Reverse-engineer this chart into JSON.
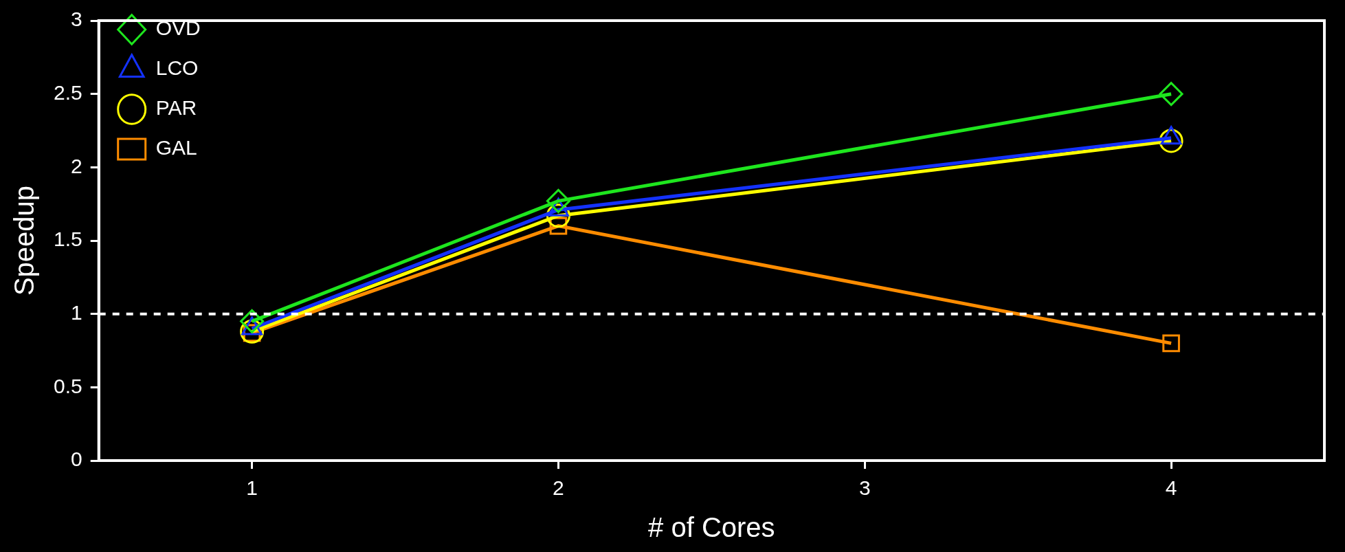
{
  "chart_data": {
    "type": "line",
    "xlabel": "# of Cores",
    "ylabel": "Speedup",
    "x": [
      1,
      2,
      4
    ],
    "xlim": [
      0.5,
      4.5
    ],
    "xticks": [
      1,
      2,
      3,
      4
    ],
    "ylim": [
      0,
      3
    ],
    "yticks": [
      0,
      0.5,
      1,
      1.5,
      2,
      2.5,
      3
    ],
    "grid": false,
    "legend": "top left",
    "ref_lines": [
      {
        "axis": "y",
        "value": 1,
        "color": "#ffffff",
        "line_style": "dashed"
      }
    ],
    "series": [
      {
        "name": "OVD",
        "color": "#1ee61e",
        "marker": "diamond",
        "values": [
          0.95,
          1.77,
          2.5
        ]
      },
      {
        "name": "LCO",
        "color": "#1432ff",
        "marker": "triangle",
        "values": [
          0.9,
          1.71,
          2.2
        ]
      },
      {
        "name": "PAR",
        "color": "#ffff00",
        "marker": "circle",
        "values": [
          0.88,
          1.67,
          2.18
        ]
      },
      {
        "name": "GAL",
        "color": "#ff8c00",
        "marker": "square",
        "values": [
          0.87,
          1.6,
          0.8
        ]
      }
    ]
  }
}
